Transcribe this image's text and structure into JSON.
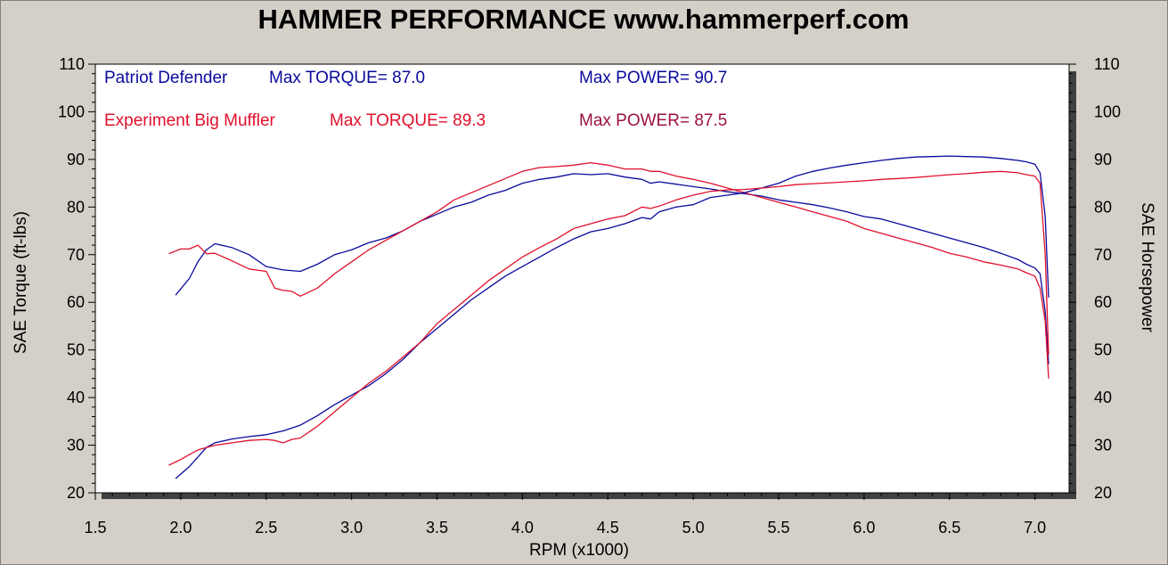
{
  "colors": {
    "background": "#d4d0c8",
    "plot_background": "#ffffff",
    "patriot": "#0a0a9c",
    "experiment": "#e0102c",
    "experiment_power_label": "#9c1040"
  },
  "chart_data": {
    "type": "line",
    "title": "HAMMER PERFORMANCE www.hammerperf.com",
    "xlabel": "RPM (x1000)",
    "ylabel": "SAE Torque (ft-lbs)",
    "y2label": "SAE Horsepower",
    "xlim": [
      1.5,
      7.2
    ],
    "ylim": [
      20,
      110
    ],
    "y2lim": [
      20,
      110
    ],
    "xticks": [
      "1.5",
      "2.0",
      "2.5",
      "3.0",
      "3.5",
      "4.0",
      "4.5",
      "5.0",
      "5.5",
      "6.0",
      "6.5",
      "7.0"
    ],
    "yticks": [
      "20",
      "30",
      "40",
      "50",
      "60",
      "70",
      "80",
      "90",
      "100",
      "110"
    ],
    "grid": false,
    "legend": [
      {
        "name": "Patriot Defender",
        "torque_text": "Max TORQUE= 87.0",
        "power_text": "Max POWER= 90.7"
      },
      {
        "name": "Experiment Big Muffler",
        "torque_text": "Max TORQUE= 89.3",
        "power_text": "Max POWER= 87.5"
      }
    ],
    "series": [
      {
        "name": "Patriot Defender",
        "measure": "torque",
        "x": [
          1.97,
          2.05,
          2.1,
          2.15,
          2.2,
          2.3,
          2.4,
          2.5,
          2.6,
          2.7,
          2.8,
          2.9,
          3.0,
          3.1,
          3.2,
          3.3,
          3.4,
          3.5,
          3.6,
          3.7,
          3.8,
          3.9,
          4.0,
          4.1,
          4.2,
          4.3,
          4.4,
          4.5,
          4.6,
          4.7,
          4.75,
          4.8,
          4.9,
          5.0,
          5.1,
          5.2,
          5.3,
          5.4,
          5.5,
          5.6,
          5.7,
          5.8,
          5.9,
          6.0,
          6.1,
          6.2,
          6.3,
          6.4,
          6.5,
          6.6,
          6.7,
          6.8,
          6.9,
          6.95,
          7.0,
          7.03,
          7.06,
          7.08
        ],
        "values": [
          61.5,
          65,
          68.5,
          71,
          72.3,
          71.5,
          70,
          67.5,
          66.8,
          66.5,
          68,
          70,
          71,
          72.5,
          73.5,
          75,
          77,
          78.5,
          80,
          81,
          82.5,
          83.5,
          85,
          85.8,
          86.3,
          87,
          86.8,
          87,
          86.3,
          85.8,
          85,
          85.3,
          84.8,
          84.3,
          83.8,
          83.2,
          82.8,
          82.3,
          81.5,
          81,
          80.5,
          79.8,
          79,
          78,
          77.5,
          76.5,
          75.5,
          74.5,
          73.5,
          72.5,
          71.5,
          70.3,
          69,
          68,
          67.2,
          66,
          58,
          47
        ]
      },
      {
        "name": "Experiment Big Muffler",
        "measure": "torque",
        "x": [
          1.93,
          2.0,
          2.05,
          2.1,
          2.15,
          2.2,
          2.3,
          2.4,
          2.5,
          2.55,
          2.6,
          2.65,
          2.7,
          2.8,
          2.9,
          3.0,
          3.1,
          3.2,
          3.3,
          3.4,
          3.5,
          3.6,
          3.7,
          3.8,
          3.9,
          4.0,
          4.1,
          4.2,
          4.3,
          4.4,
          4.5,
          4.6,
          4.7,
          4.75,
          4.8,
          4.9,
          5.0,
          5.1,
          5.2,
          5.3,
          5.4,
          5.5,
          5.6,
          5.7,
          5.8,
          5.9,
          6.0,
          6.1,
          6.2,
          6.3,
          6.4,
          6.5,
          6.6,
          6.7,
          6.8,
          6.9,
          6.95,
          7.0,
          7.03,
          7.06,
          7.08
        ],
        "values": [
          70.2,
          71.2,
          71.2,
          72,
          70.2,
          70.3,
          68.7,
          67,
          66.5,
          63,
          62.5,
          62.3,
          61.3,
          63,
          66,
          68.5,
          71,
          73,
          75,
          77,
          79,
          81.5,
          83,
          84.5,
          86,
          87.5,
          88.3,
          88.5,
          88.8,
          89.3,
          88.8,
          88,
          88,
          87.5,
          87.5,
          86.5,
          85.8,
          85,
          84,
          83,
          82,
          81,
          80,
          79,
          78,
          77,
          75.5,
          74.5,
          73.5,
          72.5,
          71.5,
          70.3,
          69.5,
          68.5,
          67.8,
          67,
          66.2,
          65.5,
          63,
          56,
          44
        ]
      },
      {
        "name": "Patriot Defender",
        "measure": "power",
        "x": [
          1.97,
          2.05,
          2.1,
          2.15,
          2.2,
          2.3,
          2.4,
          2.5,
          2.6,
          2.7,
          2.8,
          2.9,
          3.0,
          3.1,
          3.2,
          3.3,
          3.4,
          3.5,
          3.6,
          3.7,
          3.8,
          3.9,
          4.0,
          4.1,
          4.2,
          4.3,
          4.4,
          4.5,
          4.6,
          4.7,
          4.75,
          4.8,
          4.9,
          5.0,
          5.1,
          5.2,
          5.3,
          5.4,
          5.5,
          5.6,
          5.7,
          5.8,
          5.9,
          6.0,
          6.1,
          6.2,
          6.3,
          6.4,
          6.5,
          6.6,
          6.7,
          6.8,
          6.9,
          6.95,
          7.0,
          7.03,
          7.06,
          7.08
        ],
        "values": [
          23,
          25.5,
          27.5,
          29.5,
          30.5,
          31.3,
          31.8,
          32.2,
          33,
          34.2,
          36.2,
          38.5,
          40.5,
          42.5,
          45,
          48,
          51.5,
          54.5,
          57.5,
          60.5,
          63,
          65.5,
          67.5,
          69.5,
          71.5,
          73.3,
          74.8,
          75.5,
          76.5,
          77.8,
          77.5,
          79,
          80,
          80.5,
          82,
          82.5,
          83,
          84,
          85,
          86.5,
          87.5,
          88.2,
          88.8,
          89.3,
          89.8,
          90.2,
          90.5,
          90.6,
          90.7,
          90.6,
          90.5,
          90.2,
          89.8,
          89.5,
          89,
          87.2,
          78,
          61
        ]
      },
      {
        "name": "Experiment Big Muffler",
        "measure": "power",
        "x": [
          1.93,
          2.0,
          2.05,
          2.1,
          2.15,
          2.2,
          2.3,
          2.4,
          2.5,
          2.55,
          2.6,
          2.65,
          2.7,
          2.8,
          2.9,
          3.0,
          3.1,
          3.2,
          3.3,
          3.4,
          3.5,
          3.6,
          3.7,
          3.8,
          3.9,
          4.0,
          4.1,
          4.2,
          4.3,
          4.4,
          4.5,
          4.6,
          4.7,
          4.75,
          4.8,
          4.9,
          5.0,
          5.1,
          5.2,
          5.3,
          5.4,
          5.5,
          5.6,
          5.7,
          5.8,
          5.9,
          6.0,
          6.1,
          6.2,
          6.3,
          6.4,
          6.5,
          6.6,
          6.7,
          6.8,
          6.9,
          6.95,
          7.0,
          7.03,
          7.06,
          7.08
        ],
        "values": [
          25.8,
          27,
          28,
          29,
          29.5,
          30,
          30.5,
          31,
          31.2,
          31,
          30.5,
          31.2,
          31.5,
          34,
          37,
          40,
          43,
          45.5,
          48.5,
          51.5,
          55.5,
          58.5,
          61.5,
          64.5,
          67,
          69.5,
          71.5,
          73.3,
          75.5,
          76.5,
          77.5,
          78.2,
          80,
          79.7,
          80.2,
          81.5,
          82.5,
          83.3,
          83.6,
          83.7,
          84,
          84.3,
          84.7,
          84.9,
          85.1,
          85.3,
          85.5,
          85.8,
          86,
          86.2,
          86.5,
          86.8,
          87,
          87.3,
          87.5,
          87.2,
          86.8,
          86.5,
          85,
          70,
          49
        ]
      }
    ]
  }
}
